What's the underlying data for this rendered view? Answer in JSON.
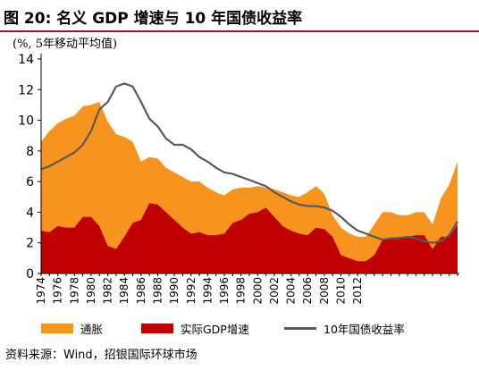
{
  "figure": {
    "title": "图 20: 名义 GDP 增速与 10 年国债收益率",
    "unit_label": "(%, 5年移动平均值)",
    "source": "资料来源：Wind，招银国际环球市场"
  },
  "colors": {
    "inflation": "#f7941d",
    "real_gdp": "#c00000",
    "bond_yield": "#595959",
    "title_rule": "#9b1c1c"
  },
  "chart_data": {
    "type": "area",
    "x": [
      1974,
      1975,
      1976,
      1977,
      1978,
      1979,
      1980,
      1981,
      1982,
      1983,
      1984,
      1985,
      1986,
      1987,
      1988,
      1989,
      1990,
      1991,
      1992,
      1993,
      1994,
      1995,
      1996,
      1997,
      1998,
      1999,
      2000,
      2001,
      2002,
      2003,
      2004,
      2005,
      2006,
      2007,
      2008,
      2009,
      2010,
      2011,
      2012,
      2013,
      2014,
      2015,
      2016,
      2017,
      2018,
      2019,
      2020,
      2021,
      2022,
      2023,
      2024
    ],
    "x_tick_labels": [
      "1974",
      "1976",
      "1978",
      "1980",
      "1982",
      "1984",
      "1986",
      "1988",
      "1990",
      "1992",
      "1994",
      "1996",
      "1998",
      "2000",
      "2002",
      "2004",
      "2006",
      "2008",
      "2010",
      "2012"
    ],
    "ylim": [
      0,
      14
    ],
    "y_ticks": [
      0,
      2,
      4,
      6,
      8,
      10,
      12,
      14
    ],
    "series": [
      {
        "name": "实际GDP增速",
        "kind": "area",
        "values": [
          2.8,
          2.7,
          3.1,
          3.0,
          3.0,
          3.7,
          3.7,
          3.1,
          1.8,
          1.6,
          2.4,
          3.3,
          3.5,
          4.6,
          4.5,
          4.0,
          3.5,
          3.0,
          2.6,
          2.7,
          2.5,
          2.5,
          2.6,
          3.3,
          3.5,
          3.9,
          4.0,
          4.3,
          3.7,
          3.1,
          2.8,
          2.6,
          2.5,
          3.0,
          2.9,
          2.4,
          1.2,
          1.0,
          0.8,
          0.8,
          1.2,
          2.2,
          2.3,
          2.4,
          2.4,
          2.5,
          2.5,
          1.6,
          2.4,
          2.4,
          3.2
        ]
      },
      {
        "name": "通胀",
        "kind": "area_stacked_top",
        "top_values": [
          8.6,
          9.3,
          9.8,
          10.1,
          10.3,
          10.9,
          11.0,
          11.2,
          9.9,
          9.1,
          8.9,
          8.6,
          7.3,
          7.6,
          7.5,
          6.9,
          6.6,
          6.3,
          6.0,
          6.0,
          5.6,
          5.3,
          5.1,
          5.5,
          5.6,
          5.6,
          5.7,
          5.6,
          5.5,
          5.3,
          5.1,
          5.0,
          5.3,
          5.7,
          5.2,
          3.8,
          3.0,
          2.6,
          2.4,
          2.4,
          3.2,
          4.0,
          4.0,
          3.8,
          3.8,
          4.0,
          4.0,
          3.2,
          4.9,
          5.8,
          7.3
        ]
      },
      {
        "name": "10年国债收益率",
        "kind": "line",
        "values": [
          6.8,
          7.0,
          7.3,
          7.6,
          7.9,
          8.4,
          9.3,
          10.7,
          11.2,
          12.2,
          12.4,
          12.2,
          11.2,
          10.1,
          9.6,
          8.8,
          8.4,
          8.4,
          8.1,
          7.6,
          7.3,
          6.9,
          6.6,
          6.5,
          6.3,
          6.1,
          5.9,
          5.7,
          5.3,
          5.0,
          4.7,
          4.5,
          4.4,
          4.4,
          4.3,
          4.1,
          3.7,
          3.2,
          2.8,
          2.6,
          2.4,
          2.2,
          2.3,
          2.3,
          2.4,
          2.3,
          2.1,
          2.0,
          2.1,
          2.5,
          3.4
        ]
      }
    ],
    "legend": [
      "通胀",
      "实际GDP增速",
      "10年国债收益率"
    ],
    "legend_position": "bottom",
    "grid": false
  }
}
